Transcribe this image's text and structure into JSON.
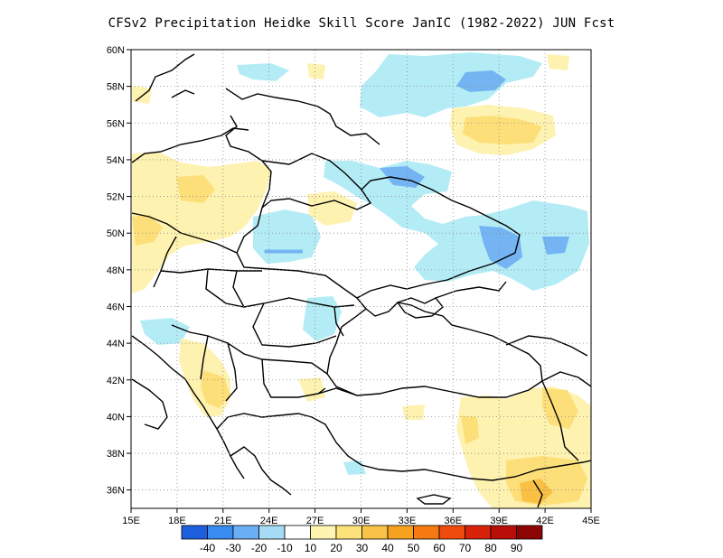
{
  "title": "CFSv2  Precipitation Heidke Skill Score JanIC (1982-2022) JUN Fcst",
  "chart_data": {
    "type": "heatmap",
    "map_region": "Eastern Europe / Black Sea",
    "x_axis": {
      "ticks": [
        "15E",
        "18E",
        "21E",
        "24E",
        "27E",
        "30E",
        "33E",
        "36E",
        "39E",
        "42E",
        "45E"
      ],
      "range": [
        15,
        45
      ]
    },
    "y_axis": {
      "ticks": [
        "60N",
        "58N",
        "56N",
        "54N",
        "52N",
        "50N",
        "48N",
        "46N",
        "44N",
        "42N",
        "40N",
        "38N",
        "36N"
      ],
      "range": [
        35,
        60
      ]
    },
    "colorbar": {
      "labels": [
        "-40",
        "-30",
        "-20",
        "-10",
        "10",
        "20",
        "30",
        "40",
        "50",
        "60",
        "70",
        "80",
        "90"
      ],
      "colors": [
        "#1e5fe0",
        "#3a8bf0",
        "#6aaff5",
        "#a6dcf5",
        "#ffffff",
        "#fff5b0",
        "#fde27a",
        "#f9c348",
        "#f7a21f",
        "#f57a12",
        "#ef4b0c",
        "#d8220a",
        "#b80f08",
        "#8c0404"
      ]
    },
    "shading_color_tokens": {
      "light_blue": "#b4ecf6",
      "mid_blue": "#74b4f2",
      "deep_blue": "#3f86e8",
      "light_yellow": "#fef2b0",
      "mid_yellow": "#fddf7a",
      "orange": "#f9c044"
    }
  }
}
